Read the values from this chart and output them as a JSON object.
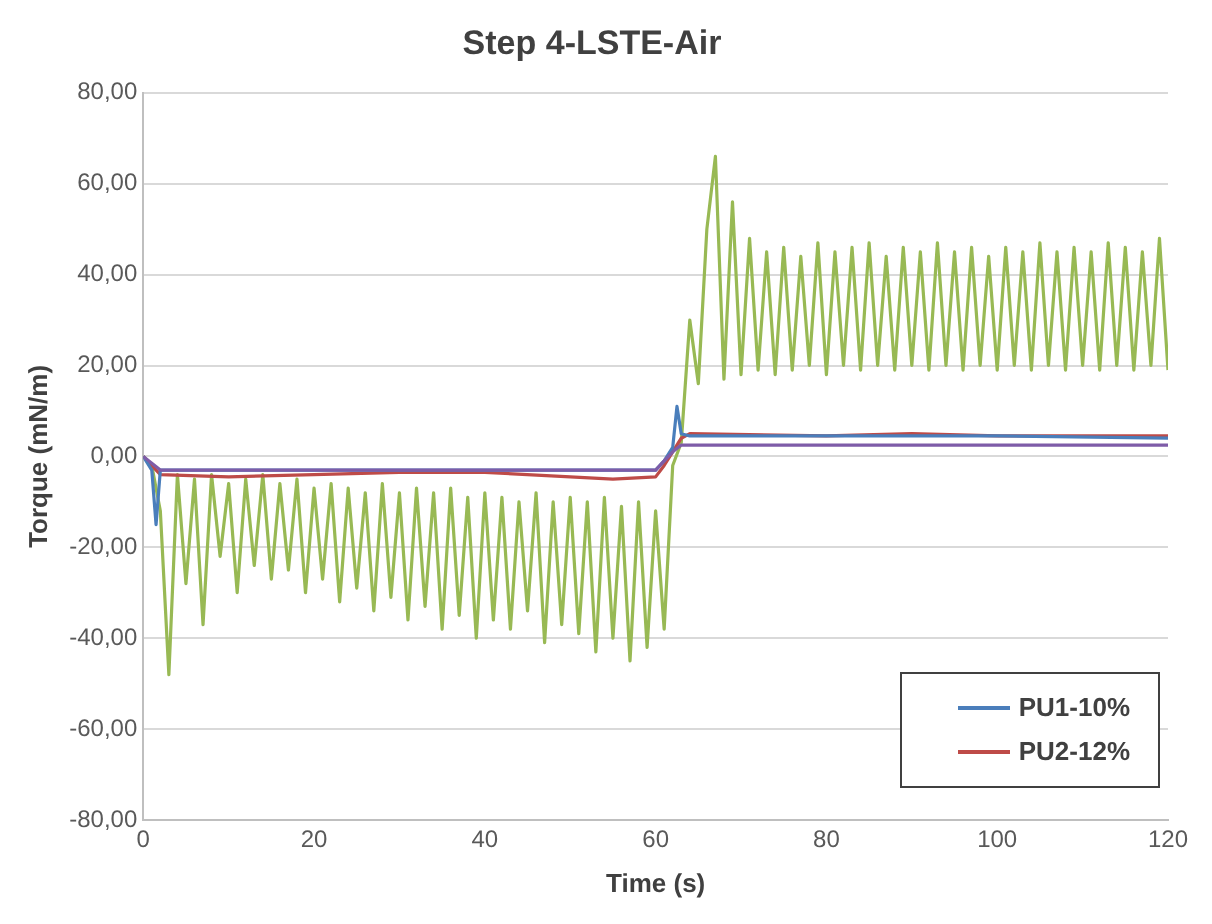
{
  "chart_data": {
    "type": "line",
    "title": "Step 4-LSTE-Air",
    "xlabel": "Time (s)",
    "ylabel": "Torque (mN/m)",
    "xlim": [
      0,
      120
    ],
    "xticks": [
      0,
      20,
      40,
      60,
      80,
      100,
      120
    ],
    "ylim": [
      -80,
      80
    ],
    "yticks": [
      {
        "value": -80,
        "label": "-80,00"
      },
      {
        "value": -60,
        "label": "-60,00"
      },
      {
        "value": -40,
        "label": "-40,00"
      },
      {
        "value": -20,
        "label": "-20,00"
      },
      {
        "value": 0,
        "label": "0,00"
      },
      {
        "value": 20,
        "label": "20,00"
      },
      {
        "value": 40,
        "label": "40,00"
      },
      {
        "value": 60,
        "label": "60,00"
      },
      {
        "value": 80,
        "label": "80,00"
      }
    ],
    "grid": "y",
    "legend": "bottom right",
    "marker": "none",
    "line_style": "solid",
    "series": [
      {
        "color": "#7e5ca8",
        "x": [
          0,
          2,
          10,
          30,
          50,
          60,
          61,
          62,
          63,
          64,
          80,
          100,
          120
        ],
        "values": [
          0,
          -3,
          -3,
          -3,
          -3,
          -3,
          -1,
          1,
          2.5,
          2.5,
          2.5,
          2.5,
          2.5
        ]
      },
      {
        "name": "PU1-10%",
        "color": "#4a7ebb",
        "x": [
          0,
          1,
          1.5,
          2,
          10,
          30,
          50,
          60,
          61,
          62,
          62.5,
          63,
          64,
          80,
          100,
          120
        ],
        "values": [
          0,
          -3,
          -15,
          -3,
          -3,
          -3,
          -3,
          -3,
          -1,
          2,
          11,
          5,
          4.5,
          4.5,
          4.5,
          4
        ]
      },
      {
        "name": "PU2-12%",
        "color": "#be4b48",
        "x": [
          0,
          2,
          10,
          20,
          30,
          40,
          50,
          55,
          60,
          61,
          62,
          63,
          64,
          80,
          90,
          100,
          120
        ],
        "values": [
          0,
          -4,
          -4.5,
          -4,
          -3.5,
          -3.5,
          -4.5,
          -5,
          -4.5,
          -2,
          1,
          4,
          5,
          4.5,
          5,
          4.5,
          4.5
        ]
      },
      {
        "color": "#98b954",
        "x": [
          0,
          1,
          2,
          3,
          4,
          5,
          6,
          7,
          8,
          9,
          10,
          11,
          12,
          13,
          14,
          15,
          16,
          17,
          18,
          19,
          20,
          21,
          22,
          23,
          24,
          25,
          26,
          27,
          28,
          29,
          30,
          31,
          32,
          33,
          34,
          35,
          36,
          37,
          38,
          39,
          40,
          41,
          42,
          43,
          44,
          45,
          46,
          47,
          48,
          49,
          50,
          51,
          52,
          53,
          54,
          55,
          56,
          57,
          58,
          59,
          60,
          61,
          62,
          63,
          64,
          65,
          66,
          67,
          68,
          69,
          70,
          71,
          72,
          73,
          74,
          75,
          76,
          77,
          78,
          79,
          80,
          81,
          82,
          83,
          84,
          85,
          86,
          87,
          88,
          89,
          90,
          91,
          92,
          93,
          94,
          95,
          96,
          97,
          98,
          99,
          100,
          101,
          102,
          103,
          104,
          105,
          106,
          107,
          108,
          109,
          110,
          111,
          112,
          113,
          114,
          115,
          116,
          117,
          118,
          119,
          120
        ],
        "values": [
          0,
          -2,
          -12,
          -48,
          -4,
          -28,
          -5,
          -37,
          -4,
          -22,
          -6,
          -30,
          -5,
          -24,
          -4,
          -27,
          -6,
          -25,
          -5,
          -30,
          -7,
          -27,
          -6,
          -32,
          -7,
          -29,
          -8,
          -34,
          -6,
          -31,
          -8,
          -36,
          -7,
          -33,
          -8,
          -38,
          -7,
          -35,
          -9,
          -40,
          -8,
          -36,
          -9,
          -38,
          -10,
          -34,
          -8,
          -41,
          -10,
          -37,
          -9,
          -39,
          -10,
          -43,
          -9,
          -40,
          -11,
          -45,
          -10,
          -42,
          -12,
          -38,
          -2,
          3,
          30,
          16,
          50,
          66,
          17,
          56,
          18,
          48,
          19,
          45,
          18,
          46,
          19,
          44,
          20,
          47,
          18,
          45,
          20,
          46,
          19,
          47,
          20,
          44,
          19,
          46,
          20,
          45,
          19,
          47,
          20,
          45,
          19,
          46,
          20,
          44,
          19,
          46,
          20,
          45,
          19,
          47,
          20,
          45,
          19,
          46,
          20,
          45,
          19,
          47,
          20,
          46,
          19,
          45,
          20,
          48,
          19
        ]
      }
    ]
  }
}
